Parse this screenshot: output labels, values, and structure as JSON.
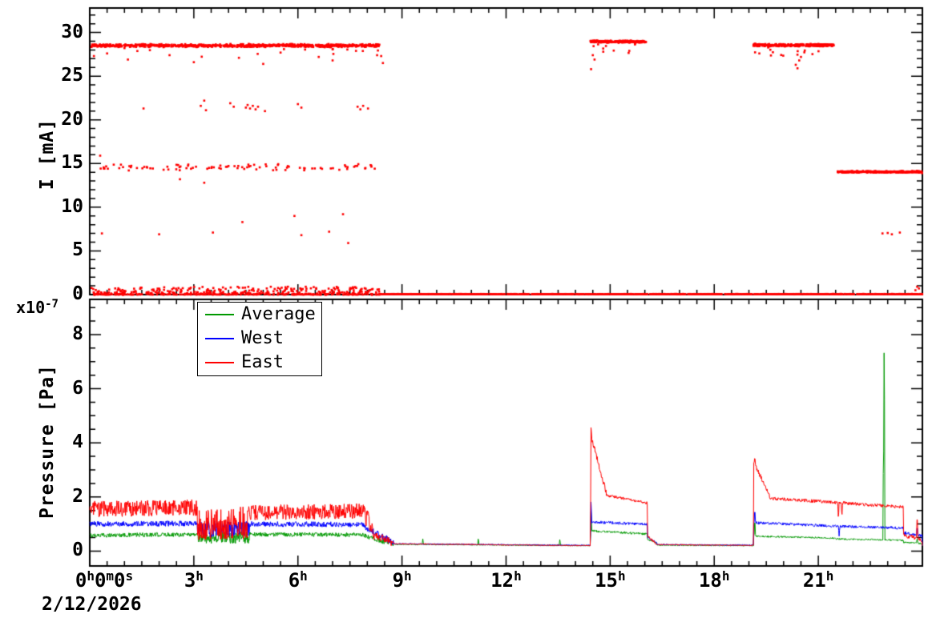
{
  "figure": {
    "date_label": "2/12/2026",
    "background": "#ffffff",
    "frame_color": "#000000"
  },
  "x_axis": {
    "lim": [
      0,
      24
    ],
    "major_every_h": 3,
    "minor_every_h": 0.5,
    "tick_labels": [
      {
        "t": 0,
        "dx": 18,
        "parts": [
          {
            "v": "0",
            "s": "h"
          },
          {
            "v": "0",
            "s": "m"
          },
          {
            "v": "0",
            "s": "s"
          }
        ]
      },
      {
        "t": 3,
        "dx": 0,
        "parts": [
          {
            "v": "3",
            "s": "h"
          }
        ]
      },
      {
        "t": 6,
        "dx": 0,
        "parts": [
          {
            "v": "6",
            "s": "h"
          }
        ]
      },
      {
        "t": 9,
        "dx": 0,
        "parts": [
          {
            "v": "9",
            "s": "h"
          }
        ]
      },
      {
        "t": 12,
        "dx": 0,
        "parts": [
          {
            "v": "12",
            "s": "h"
          }
        ]
      },
      {
        "t": 15,
        "dx": 0,
        "parts": [
          {
            "v": "15",
            "s": "h"
          }
        ]
      },
      {
        "t": 18,
        "dx": 0,
        "parts": [
          {
            "v": "18",
            "s": "h"
          }
        ]
      },
      {
        "t": 21,
        "dx": 0,
        "parts": [
          {
            "v": "21",
            "s": "h"
          }
        ]
      }
    ]
  },
  "top_panel": {
    "ylabel": "I [mA]",
    "ytick_labels": [
      "0",
      "5",
      "10",
      "15",
      "20",
      "25",
      "30"
    ],
    "ytick_values": [
      0,
      5,
      10,
      15,
      20,
      25,
      30
    ],
    "y_major_every": 5,
    "y_minor_every": 1,
    "ylim_data": [
      0,
      30
    ],
    "series_color": "#ff0000"
  },
  "bottom_panel": {
    "ylabel": "Pressure [Pa]",
    "scale_label": {
      "base": "x10",
      "exp": "-7"
    },
    "ytick_labels": [
      "0",
      "2",
      "4",
      "6",
      "8"
    ],
    "ytick_values": [
      0,
      2,
      4,
      6,
      8
    ],
    "y_major_every": 2,
    "y_minor_every": 0.5,
    "ylim_data": [
      0,
      9
    ],
    "legend": [
      {
        "label": "Average",
        "color": "#009900"
      },
      {
        "label": "West",
        "color": "#0000ff"
      },
      {
        "label": "East",
        "color": "#ff0000"
      }
    ]
  },
  "chart_data": [
    {
      "type": "scatter",
      "name": "beam-current",
      "ylabel": "I [mA]",
      "units": "mA",
      "color": "#ff0000",
      "marker_px": 2.6,
      "bands": [
        {
          "t0": 0.05,
          "t1": 8.35,
          "level": 28.5,
          "spread": 0.2,
          "pts": 750
        },
        {
          "t0": 14.42,
          "t1": 16.05,
          "level": 28.95,
          "spread": 0.13,
          "pts": 280
        },
        {
          "t0": 19.12,
          "t1": 21.45,
          "level": 28.55,
          "spread": 0.16,
          "pts": 340
        },
        {
          "t0": 21.55,
          "t1": 23.98,
          "level": 14.05,
          "spread": 0.1,
          "pts": 400
        },
        {
          "t0": 0.3,
          "t1": 8.35,
          "level": 14.6,
          "spread": 0.45,
          "pts": 95
        },
        {
          "t0": 0.05,
          "t1": 8.35,
          "level": 0,
          "spread": 0.9,
          "pts": 520,
          "dist": "floor"
        },
        {
          "t0": 8.35,
          "t1": 14.42,
          "level": 0.05,
          "spread": 0.03,
          "pts": 480
        },
        {
          "t0": 14.42,
          "t1": 16.05,
          "level": 0.05,
          "spread": 0.03,
          "pts": 130
        },
        {
          "t0": 16.05,
          "t1": 19.12,
          "level": 0.05,
          "spread": 0.03,
          "pts": 250
        },
        {
          "t0": 19.12,
          "t1": 21.45,
          "level": 0.05,
          "spread": 0.03,
          "pts": 190
        },
        {
          "t0": 21.45,
          "t1": 24.0,
          "level": 0.05,
          "spread": 0.03,
          "pts": 210
        }
      ],
      "extra_points": [
        [
          1.55,
          21.3
        ],
        [
          3.2,
          21.6
        ],
        [
          3.3,
          22.2
        ],
        [
          3.35,
          21.1
        ],
        [
          4.05,
          21.9
        ],
        [
          4.15,
          21.5
        ],
        [
          4.5,
          21.4
        ],
        [
          4.55,
          21.7
        ],
        [
          4.62,
          21.3
        ],
        [
          4.7,
          21.6
        ],
        [
          4.78,
          21.2
        ],
        [
          4.85,
          21.5
        ],
        [
          5.05,
          21.0
        ],
        [
          6.0,
          21.8
        ],
        [
          6.1,
          21.4
        ],
        [
          7.72,
          21.5
        ],
        [
          7.8,
          21.2
        ],
        [
          7.88,
          21.6
        ],
        [
          8.02,
          21.3
        ],
        [
          0.35,
          7.0
        ],
        [
          2.0,
          6.9
        ],
        [
          3.55,
          7.1
        ],
        [
          6.1,
          6.8
        ],
        [
          6.9,
          7.2
        ],
        [
          7.45,
          5.9
        ],
        [
          22.85,
          7.0
        ],
        [
          23.0,
          7.05
        ],
        [
          23.12,
          6.9
        ],
        [
          23.35,
          7.1
        ],
        [
          0.12,
          27.3
        ],
        [
          0.5,
          27.6
        ],
        [
          1.1,
          26.9
        ],
        [
          2.3,
          27.4
        ],
        [
          3.0,
          26.6
        ],
        [
          4.3,
          27.1
        ],
        [
          5.0,
          26.4
        ],
        [
          5.5,
          27.7
        ],
        [
          6.6,
          27.2
        ],
        [
          7.0,
          26.8
        ],
        [
          8.4,
          27.3
        ],
        [
          8.45,
          26.5
        ],
        [
          14.45,
          25.8
        ],
        [
          14.5,
          27.4
        ],
        [
          14.55,
          26.9
        ],
        [
          19.3,
          27.6
        ],
        [
          20.35,
          26.3
        ],
        [
          20.4,
          25.9
        ],
        [
          20.45,
          26.8
        ],
        [
          20.5,
          27.2
        ],
        [
          2.6,
          13.2
        ],
        [
          3.3,
          12.8
        ],
        [
          5.9,
          9.0
        ],
        [
          4.4,
          8.3
        ],
        [
          7.3,
          9.2
        ],
        [
          0.3,
          15.9
        ],
        [
          23.85,
          0.9
        ],
        [
          23.9,
          0.7
        ],
        [
          23.8,
          0.5
        ],
        [
          23.99,
          13.9
        ]
      ]
    },
    {
      "type": "line",
      "name": "pressure",
      "ylabel": "Pressure [Pa]",
      "units": "1e-7 Pa",
      "sample_dt_h": 0.012,
      "series": [
        {
          "name": "Average",
          "color": "#009900",
          "segments": [
            [
              0,
              3.1,
              0.58,
              0.62,
              0.08
            ],
            [
              3.1,
              4.6,
              0.5,
              0.5,
              0.22
            ],
            [
              4.6,
              7.9,
              0.62,
              0.6,
              0.08
            ],
            [
              7.9,
              8.75,
              0.55,
              0.27,
              0.1
            ],
            [
              8.75,
              14.44,
              0.25,
              0.2,
              0.015
            ],
            [
              14.44,
              16.08,
              0.75,
              0.63,
              0.04
            ],
            [
              16.08,
              16.35,
              0.42,
              0.3,
              0.03
            ],
            [
              16.35,
              19.14,
              0.22,
              0.2,
              0.015
            ],
            [
              19.14,
              21.5,
              0.55,
              0.48,
              0.03
            ],
            [
              21.5,
              23.45,
              0.45,
              0.4,
              0.03
            ],
            [
              23.45,
              24,
              0.32,
              0.28,
              0.03
            ]
          ],
          "spikes": [
            [
              9.6,
              0.45
            ],
            [
              11.2,
              0.5
            ],
            [
              13.55,
              0.45
            ],
            [
              14.45,
              1.55
            ],
            [
              19.17,
              1.25
            ],
            [
              22.88,
              4.5
            ],
            [
              22.9,
              9.05
            ],
            [
              23.85,
              0.5
            ]
          ]
        },
        {
          "name": "West",
          "color": "#0000ff",
          "segments": [
            [
              0,
              3.1,
              1.0,
              1.02,
              0.1
            ],
            [
              3.1,
              4.6,
              0.82,
              0.8,
              0.3
            ],
            [
              4.6,
              7.9,
              1.0,
              0.98,
              0.1
            ],
            [
              7.9,
              8.75,
              0.9,
              0.32,
              0.12
            ],
            [
              8.75,
              14.44,
              0.27,
              0.21,
              0.02
            ],
            [
              14.44,
              16.08,
              1.08,
              0.98,
              0.05
            ],
            [
              16.08,
              16.35,
              0.5,
              0.3,
              0.03
            ],
            [
              16.35,
              19.14,
              0.24,
              0.22,
              0.02
            ],
            [
              19.14,
              21.5,
              1.05,
              0.92,
              0.05
            ],
            [
              21.5,
              23.45,
              0.92,
              0.85,
              0.05
            ],
            [
              23.45,
              24,
              0.68,
              0.55,
              0.06
            ]
          ],
          "spikes": [
            [
              14.45,
              1.9
            ],
            [
              19.17,
              1.6
            ],
            [
              21.6,
              0.55
            ],
            [
              23.85,
              0.95
            ]
          ]
        },
        {
          "name": "East",
          "color": "#ff0000",
          "segments": [
            [
              0,
              3.1,
              1.55,
              1.6,
              0.3
            ],
            [
              3.1,
              4.6,
              1.0,
              1.05,
              0.6
            ],
            [
              4.6,
              7.9,
              1.42,
              1.48,
              0.28
            ],
            [
              7.9,
              8.2,
              1.3,
              0.8,
              0.4
            ],
            [
              8.2,
              8.75,
              0.6,
              0.3,
              0.15
            ],
            [
              8.75,
              14.44,
              0.27,
              0.2,
              0.02
            ],
            [
              14.44,
              14.9,
              4.3,
              2.1,
              0.1
            ],
            [
              14.9,
              16.08,
              2.05,
              1.78,
              0.05
            ],
            [
              16.08,
              16.3,
              0.55,
              0.3,
              0.04
            ],
            [
              16.3,
              19.14,
              0.24,
              0.21,
              0.02
            ],
            [
              19.14,
              19.6,
              3.3,
              2.0,
              0.08
            ],
            [
              19.6,
              21.5,
              1.95,
              1.8,
              0.06
            ],
            [
              21.5,
              23.45,
              1.8,
              1.62,
              0.06
            ],
            [
              23.45,
              23.8,
              0.58,
              0.5,
              0.08
            ],
            [
              23.8,
              24,
              0.5,
              0.38,
              0.06
            ]
          ],
          "spikes": [
            [
              14.45,
              4.6
            ],
            [
              19.17,
              3.5
            ],
            [
              21.58,
              1.15
            ],
            [
              21.68,
              1.25
            ],
            [
              23.85,
              1.45
            ]
          ]
        }
      ]
    }
  ]
}
